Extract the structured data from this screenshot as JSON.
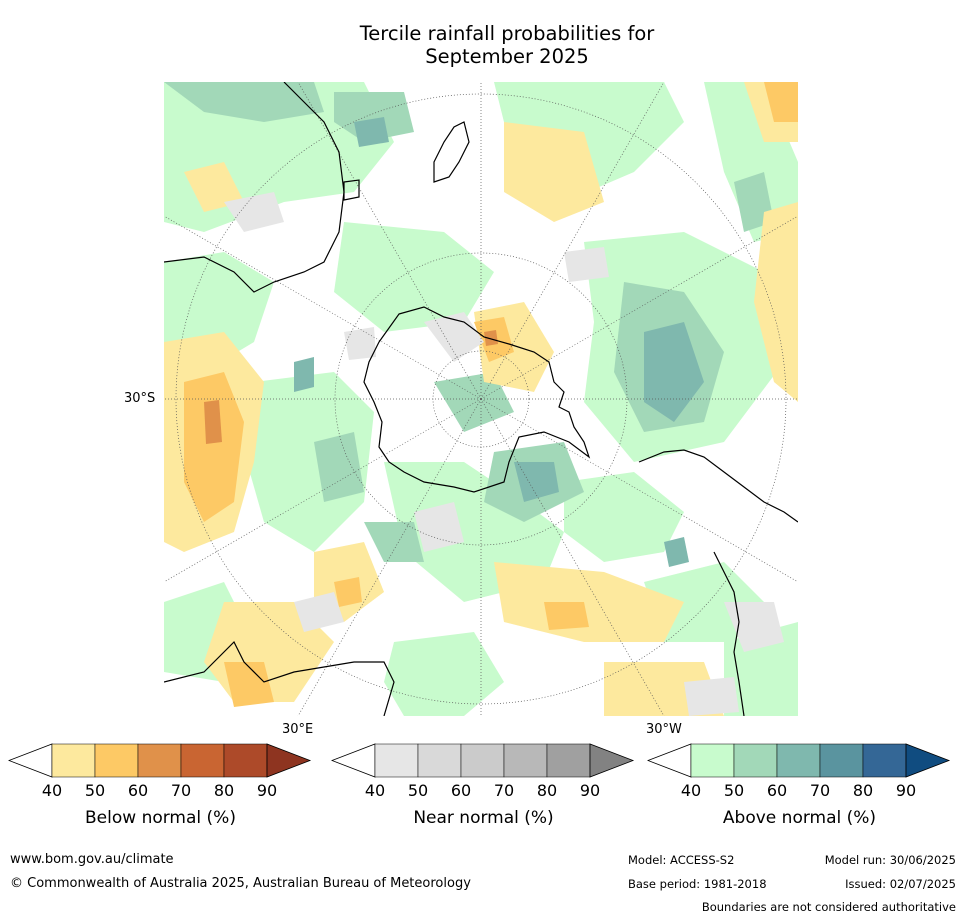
{
  "title": {
    "line1": "Tercile rainfall probabilities for",
    "line2": "September 2025"
  },
  "map": {
    "projection": "south polar stereographic",
    "lat_labels": [
      "30°S"
    ],
    "lon_labels": [
      "30°E",
      "30°W"
    ],
    "field": "probability of tercile rainfall category",
    "continents_outlined": true,
    "graticule": "dotted"
  },
  "colorbars": [
    {
      "name": "below",
      "label": "Below normal (%)",
      "ticks": [
        "40",
        "50",
        "60",
        "70",
        "80",
        "90"
      ],
      "colors": [
        "#ffffff",
        "#fde99e",
        "#fdc965",
        "#e0914a",
        "#c96532",
        "#ad4a29",
        "#8e3420"
      ]
    },
    {
      "name": "near",
      "label": "Near normal (%)",
      "ticks": [
        "40",
        "50",
        "60",
        "70",
        "80",
        "90"
      ],
      "colors": [
        "#ffffff",
        "#e6e6e6",
        "#d9d9d9",
        "#cbcbcb",
        "#b8b8b8",
        "#a0a0a0",
        "#828282"
      ]
    },
    {
      "name": "above",
      "label": "Above normal (%)",
      "ticks": [
        "40",
        "50",
        "60",
        "70",
        "80",
        "90"
      ],
      "colors": [
        "#ffffff",
        "#c8fbcd",
        "#a2d8b8",
        "#7fb8ae",
        "#5a949f",
        "#346796",
        "#104c80"
      ]
    }
  ],
  "footer": {
    "website": "www.bom.gov.au/climate",
    "copyright": "© Commonwealth of Australia 2025, Australian Bureau of Meteorology",
    "model": "Model: ACCESS-S2",
    "base_period": "Base period: 1981-2018",
    "model_run": "Model run: 30/06/2025",
    "issued": "Issued: 02/07/2025",
    "disclaimer": "Boundaries are not considered authoritative"
  }
}
